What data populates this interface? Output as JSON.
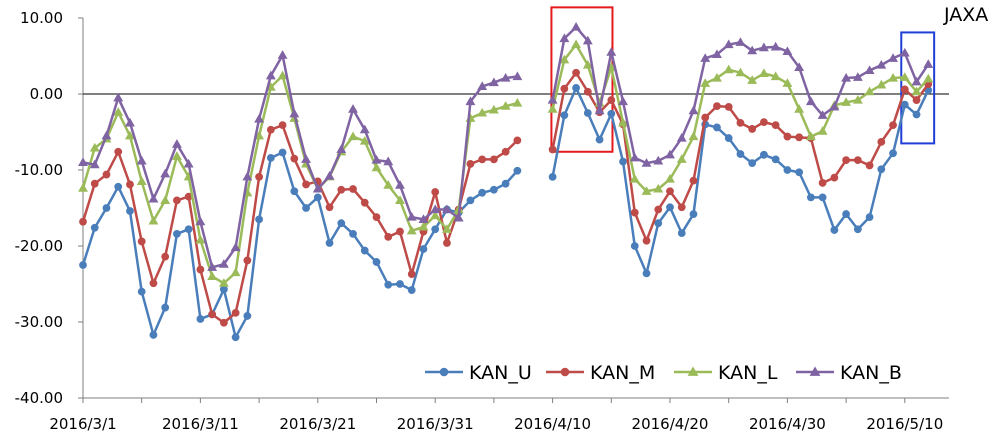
{
  "chart_data": {
    "type": "line",
    "watermark": "JAXA",
    "x": [
      "2016/3/1",
      "2016/3/2",
      "2016/3/3",
      "2016/3/4",
      "2016/3/5",
      "2016/3/6",
      "2016/3/7",
      "2016/3/8",
      "2016/3/9",
      "2016/3/10",
      "2016/3/11",
      "2016/3/12",
      "2016/3/13",
      "2016/3/14",
      "2016/3/15",
      "2016/3/16",
      "2016/3/17",
      "2016/3/18",
      "2016/3/19",
      "2016/3/20",
      "2016/3/21",
      "2016/3/22",
      "2016/3/23",
      "2016/3/24",
      "2016/3/25",
      "2016/3/26",
      "2016/3/27",
      "2016/3/28",
      "2016/3/29",
      "2016/3/30",
      "2016/3/31",
      "2016/4/1",
      "2016/4/2",
      "2016/4/3",
      "2016/4/4",
      "2016/4/5",
      "2016/4/6",
      "2016/4/7",
      "2016/4/8",
      "2016/4/9",
      "2016/4/10",
      "2016/4/11",
      "2016/4/12",
      "2016/4/13",
      "2016/4/14",
      "2016/4/15",
      "2016/4/16",
      "2016/4/17",
      "2016/4/18",
      "2016/4/19",
      "2016/4/20",
      "2016/4/21",
      "2016/4/22",
      "2016/4/23",
      "2016/4/24",
      "2016/4/25",
      "2016/4/26",
      "2016/4/27",
      "2016/4/28",
      "2016/4/29",
      "2016/4/30",
      "2016/5/1",
      "2016/5/2",
      "2016/5/3",
      "2016/5/4",
      "2016/5/5",
      "2016/5/6",
      "2016/5/7",
      "2016/5/8",
      "2016/5/9",
      "2016/5/10",
      "2016/5/11",
      "2016/5/12"
    ],
    "x_tick_labels": [
      "2016/3/1",
      "2016/3/11",
      "2016/3/21",
      "2016/3/31",
      "2016/4/10",
      "2016/4/20",
      "2016/4/30",
      "2016/5/10"
    ],
    "x_tick_indices": [
      0,
      10,
      20,
      30,
      40,
      50,
      60,
      70
    ],
    "ylim": [
      -40,
      10
    ],
    "y_tick_labels": [
      "10.00",
      "0.00",
      "-10.00",
      "-20.00",
      "-30.00",
      "-40.00"
    ],
    "y_tick_values": [
      10,
      0,
      -10,
      -20,
      -30,
      -40
    ],
    "grid": false,
    "zero_line": true,
    "legend_placement": "bottom-right",
    "series": [
      {
        "name": "KAN_U",
        "color": "#4A7EBB",
        "marker": "circle",
        "values": [
          -22.5,
          -17.6,
          -15.0,
          -12.2,
          -15.4,
          -26.0,
          -31.7,
          -28.1,
          -18.4,
          -17.8,
          -29.6,
          -29.0,
          -25.7,
          -32.0,
          -29.2,
          -16.5,
          -8.4,
          -7.7,
          -12.8,
          -15.0,
          -13.6,
          -19.6,
          -17.0,
          -18.4,
          -20.6,
          -22.1,
          -25.1,
          -25.0,
          -25.8,
          -20.4,
          -17.8,
          -15.2,
          -15.6,
          -14.0,
          -13.0,
          -12.6,
          -11.8,
          -10.1,
          null,
          null,
          -10.9,
          -2.8,
          0.8,
          -2.5,
          -6.0,
          -2.6,
          -8.9,
          -20.0,
          -23.6,
          -17.0,
          -14.9,
          -18.3,
          -15.8,
          -4.0,
          -4.4,
          -5.8,
          -7.9,
          -9.1,
          -8.0,
          -8.6,
          -10.0,
          -10.3,
          -13.6,
          -13.6,
          -17.9,
          -15.8,
          -17.8,
          -16.2,
          -9.9,
          -7.8,
          -1.4,
          -2.7,
          0.5
        ]
      },
      {
        "name": "KAN_M",
        "color": "#BE4B48",
        "marker": "circle",
        "values": [
          -16.8,
          -11.8,
          -10.6,
          -7.6,
          -11.9,
          -19.4,
          -24.9,
          -21.4,
          -14.0,
          -13.5,
          -23.1,
          -29.0,
          -30.1,
          -28.8,
          -21.9,
          -10.9,
          -4.7,
          -4.1,
          -8.5,
          -11.9,
          -11.5,
          -14.9,
          -12.6,
          -12.5,
          -14.3,
          -16.2,
          -18.8,
          -18.1,
          -23.7,
          -18.1,
          -12.9,
          -19.6,
          -15.2,
          -9.2,
          -8.6,
          -8.6,
          -7.6,
          -6.1,
          null,
          null,
          -7.3,
          0.7,
          2.8,
          0.3,
          -2.4,
          -0.8,
          -4.0,
          -15.6,
          -19.3,
          -15.2,
          -12.8,
          -14.9,
          -11.4,
          -3.1,
          -1.6,
          -1.7,
          -3.8,
          -4.6,
          -3.7,
          -4.1,
          -5.6,
          -5.7,
          -5.8,
          -11.7,
          -11.0,
          -8.7,
          -8.7,
          -9.4,
          -6.3,
          -4.1,
          0.6,
          -0.8,
          1.3
        ]
      },
      {
        "name": "KAN_L",
        "color": "#9BBB59",
        "marker": "triangle",
        "values": [
          -12.4,
          -7.1,
          -5.9,
          -2.4,
          -5.5,
          -11.5,
          -16.7,
          -14.0,
          -8.2,
          -10.9,
          -19.2,
          -24.0,
          -24.9,
          -23.5,
          -13.0,
          -5.5,
          0.9,
          2.4,
          -3.2,
          -9.2,
          -12.5,
          -10.9,
          -7.6,
          -5.6,
          -6.2,
          -9.7,
          -12.0,
          -14.0,
          -18.0,
          -17.5,
          -16.0,
          -17.8,
          -15.2,
          -3.2,
          -2.5,
          -2.1,
          -1.6,
          -1.2,
          null,
          null,
          -2.0,
          4.5,
          6.5,
          3.8,
          -1.2,
          3.5,
          -3.8,
          -11.2,
          -12.8,
          -12.5,
          -11.2,
          -8.6,
          -5.6,
          1.4,
          2.1,
          3.2,
          2.8,
          1.8,
          2.7,
          2.3,
          1.4,
          -2.0,
          -5.6,
          -4.9,
          -1.5,
          -1.1,
          -0.8,
          0.3,
          1.2,
          2.1,
          2.2,
          0.3,
          2.0
        ]
      },
      {
        "name": "KAN_B",
        "color": "#7F63A2",
        "marker": "triangle",
        "values": [
          -9.0,
          -9.3,
          -5.5,
          -0.5,
          -3.8,
          -8.8,
          -13.8,
          -10.5,
          -6.6,
          -9.2,
          -16.8,
          -22.8,
          -22.4,
          -20.2,
          -10.9,
          -3.3,
          2.4,
          5.1,
          -2.6,
          -8.6,
          -12.5,
          -10.8,
          -7.3,
          -2.0,
          -4.7,
          -8.7,
          -8.9,
          -12.0,
          -16.2,
          -16.5,
          -15.2,
          -15.2,
          -16.3,
          -1.0,
          1.0,
          1.5,
          2.1,
          2.3,
          null,
          null,
          -0.8,
          7.3,
          8.8,
          7.0,
          -2.2,
          5.5,
          -1.0,
          -8.4,
          -9.1,
          -8.8,
          -8.0,
          -5.8,
          -2.2,
          4.7,
          5.2,
          6.5,
          6.8,
          5.7,
          6.1,
          6.2,
          5.6,
          3.5,
          -1.0,
          -2.8,
          -1.7,
          2.1,
          2.2,
          3.1,
          3.8,
          4.7,
          5.4,
          1.6,
          3.9
        ]
      }
    ],
    "highlight_boxes": [
      {
        "color": "#E41A1C",
        "x_index_range": [
          39.9,
          45.1
        ],
        "y_range": [
          -7.6,
          11.4
        ]
      },
      {
        "color": "#1F3FD6",
        "x_index_range": [
          69.7,
          72.5
        ],
        "y_range": [
          -6.5,
          8.1
        ]
      }
    ]
  }
}
